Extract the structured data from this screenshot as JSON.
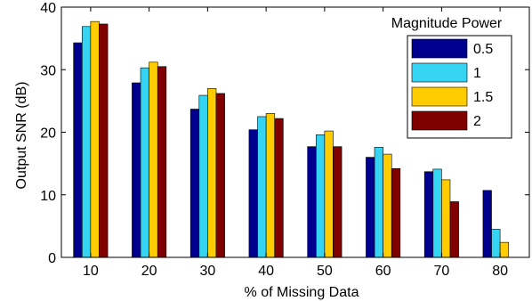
{
  "chart_data": {
    "type": "bar",
    "categories": [
      "10",
      "20",
      "30",
      "40",
      "50",
      "60",
      "70",
      "80"
    ],
    "series": [
      {
        "name": "0.5",
        "color": "#00008f",
        "values": [
          34.3,
          27.9,
          23.7,
          20.4,
          17.7,
          16.0,
          13.7,
          10.7
        ]
      },
      {
        "name": "1",
        "color": "#35d4f2",
        "values": [
          36.9,
          30.3,
          25.9,
          22.5,
          19.6,
          17.6,
          14.1,
          4.5
        ]
      },
      {
        "name": "1.5",
        "color": "#ffcc00",
        "values": [
          37.7,
          31.2,
          27.0,
          23.0,
          20.2,
          16.5,
          12.4,
          2.4
        ]
      },
      {
        "name": "2",
        "color": "#800000",
        "values": [
          37.3,
          30.5,
          26.2,
          22.2,
          17.7,
          14.2,
          8.9,
          0
        ]
      }
    ],
    "xlabel": "% of Missing Data",
    "ylabel": "Output SNR (dB)",
    "ylim": [
      0,
      40
    ],
    "yticks": [
      "0",
      "10",
      "20",
      "30",
      "40"
    ],
    "legend_title": "Magnitude Power",
    "legend_position": "top-right",
    "grid": false
  }
}
